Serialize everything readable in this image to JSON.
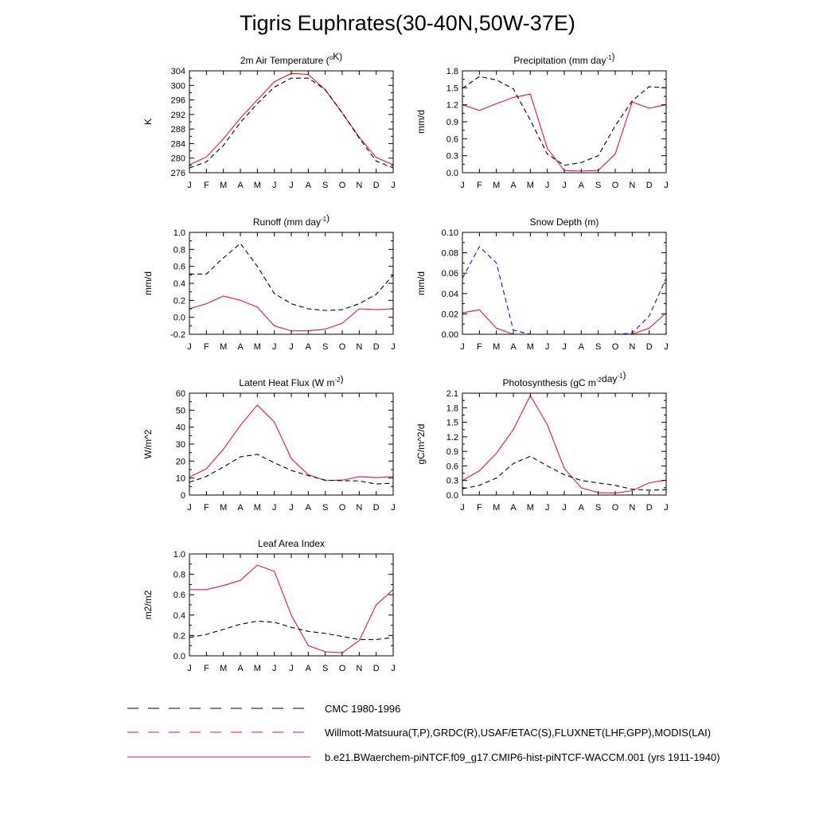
{
  "page": {
    "title": "Tigris Euphrates(30-40N,50W-37E)"
  },
  "months": [
    "J",
    "F",
    "M",
    "A",
    "M",
    "J",
    "J",
    "A",
    "S",
    "O",
    "N",
    "D",
    "J"
  ],
  "colors": {
    "model": "#e8191f",
    "cmc": "#000000",
    "obs": "#0a16d8",
    "axis": "#000000"
  },
  "legend": [
    {
      "label": "CMC 1980-1996",
      "style": "dashed",
      "colors": [
        "#000000"
      ]
    },
    {
      "label": "Willmott-Matsuura(T,P),GRDC(R),USAF/ETAC(S),FLUXNET(LHF,GPP),MODIS(LAI)",
      "style": "dashed",
      "colors": [
        "#e8191f",
        "#0a16d8"
      ]
    },
    {
      "label": "b.e21.BWaerchem-piNTCF.f09_g17.CMIP6-hist-piNTCF-WACCM.001 (yrs 1911-1940)",
      "style": "solid",
      "colors": [
        "#e8191f"
      ]
    }
  ],
  "chart_data": [
    {
      "type": "line",
      "title_parts": [
        {
          "t": "2m Air Temperature ("
        },
        {
          "t": "o",
          "sup": true
        },
        {
          "t": "K)"
        }
      ],
      "ylabel": "K",
      "ylim": [
        276,
        304
      ],
      "yticks": [
        276,
        280,
        284,
        288,
        292,
        296,
        300,
        304
      ],
      "ytick_labels": [
        "276",
        "280",
        "284",
        "288",
        "292",
        "296",
        "300",
        "304"
      ],
      "series": [
        {
          "role": "model",
          "style": "solid",
          "color": "#e8191f",
          "values": [
            278.2,
            280.3,
            285.3,
            291.0,
            296.0,
            301.0,
            303.3,
            303.0,
            298.8,
            292.4,
            285.8,
            280.2,
            278.2
          ]
        },
        {
          "role": "cmc",
          "style": "dashed",
          "color": "#000000",
          "values": [
            277.3,
            279.0,
            283.5,
            289.8,
            295.0,
            299.5,
            302.0,
            302.0,
            298.8,
            292.5,
            285.5,
            279.2,
            277.3
          ]
        }
      ]
    },
    {
      "type": "line",
      "title_parts": [
        {
          "t": "Precipitation (mm day"
        },
        {
          "t": "-1",
          "sup": true
        },
        {
          "t": ")"
        }
      ],
      "ylabel": "mm/d",
      "ylim": [
        0,
        1.8
      ],
      "yticks": [
        0,
        0.3,
        0.6,
        0.9,
        1.2,
        1.5,
        1.8
      ],
      "ytick_labels": [
        "0.0",
        "0.3",
        "0.6",
        "0.9",
        "1.2",
        "1.5",
        "1.8"
      ],
      "series": [
        {
          "role": "model",
          "style": "solid",
          "color": "#e8191f",
          "values": [
            1.2,
            1.1,
            1.22,
            1.33,
            1.39,
            0.43,
            0.04,
            0.03,
            0.04,
            0.33,
            1.25,
            1.14,
            1.2
          ]
        },
        {
          "role": "cmc",
          "style": "dashed",
          "color": "#000000",
          "values": [
            1.49,
            1.7,
            1.64,
            1.48,
            0.93,
            0.33,
            0.13,
            0.18,
            0.3,
            0.83,
            1.27,
            1.52,
            1.5
          ]
        }
      ]
    },
    {
      "type": "line",
      "title_parts": [
        {
          "t": "Runoff (mm day"
        },
        {
          "t": "-1",
          "sup": true
        },
        {
          "t": ")"
        }
      ],
      "ylabel": "mm/d",
      "ylim": [
        -0.2,
        1.0
      ],
      "yticks": [
        -0.2,
        0,
        0.2,
        0.4,
        0.6,
        0.8,
        1.0
      ],
      "ytick_labels": [
        "-0.2",
        "0.0",
        "0.2",
        "0.4",
        "0.6",
        "0.8",
        "1.0"
      ],
      "series": [
        {
          "role": "model",
          "style": "solid",
          "color": "#e8191f",
          "values": [
            0.1,
            0.16,
            0.25,
            0.2,
            0.12,
            -0.1,
            -0.16,
            -0.16,
            -0.14,
            -0.07,
            0.1,
            0.09,
            0.1
          ]
        },
        {
          "role": "cmc",
          "style": "dashed",
          "color": "#000000",
          "values": [
            0.51,
            0.51,
            0.7,
            0.87,
            0.6,
            0.28,
            0.16,
            0.1,
            0.08,
            0.09,
            0.16,
            0.27,
            0.5
          ]
        }
      ]
    },
    {
      "type": "line",
      "title_parts": [
        {
          "t": "Snow Depth (m)"
        }
      ],
      "ylabel": "mm/d",
      "ylim": [
        0,
        0.1
      ],
      "yticks": [
        0,
        0.02,
        0.04,
        0.06,
        0.08,
        0.1
      ],
      "ytick_labels": [
        "0.00",
        "0.02",
        "0.04",
        "0.06",
        "0.08",
        "0.10"
      ],
      "series": [
        {
          "role": "model",
          "style": "solid",
          "color": "#e8191f",
          "values": [
            0.021,
            0.024,
            0.006,
            0.0,
            0.0,
            0.0,
            0.0,
            0.0,
            0.0,
            0.0,
            0.0,
            0.006,
            0.021
          ]
        },
        {
          "role": "cmc",
          "style": "dashed",
          "color": "#000000",
          "values": [
            0.0,
            0.0,
            0.0,
            0.0,
            0.0,
            0.0,
            0.0,
            0.0,
            0.0,
            0.0,
            0.0,
            0.0,
            0.0
          ]
        },
        {
          "role": "obs",
          "style": "dashed",
          "color": "#0a16d8",
          "values": [
            0.055,
            0.086,
            0.07,
            0.004,
            0.0,
            0.0,
            0.0,
            0.0,
            0.0,
            0.0,
            0.001,
            0.018,
            0.055
          ]
        }
      ]
    },
    {
      "type": "line",
      "title_parts": [
        {
          "t": "Latent Heat Flux (W m"
        },
        {
          "t": "-2",
          "sup": true
        },
        {
          "t": ")"
        }
      ],
      "ylabel": "W/m^2",
      "ylim": [
        0,
        60
      ],
      "yticks": [
        0,
        10,
        20,
        30,
        40,
        50,
        60
      ],
      "ytick_labels": [
        "0",
        "10",
        "20",
        "30",
        "40",
        "50",
        "60"
      ],
      "series": [
        {
          "role": "model",
          "style": "solid",
          "color": "#e8191f",
          "values": [
            10.5,
            15.5,
            27.0,
            41.0,
            53.0,
            43.0,
            21.5,
            12.0,
            8.5,
            8.8,
            10.8,
            10.3,
            10.8
          ]
        },
        {
          "role": "cmc",
          "style": "dashed",
          "color": "#000000",
          "values": [
            7.5,
            11.0,
            16.5,
            22.5,
            24.0,
            19.0,
            14.5,
            11.5,
            8.8,
            8.5,
            8.3,
            6.5,
            7.0
          ]
        }
      ]
    },
    {
      "type": "line",
      "title_parts": [
        {
          "t": "Photosynthesis (gC m"
        },
        {
          "t": "-2",
          "sup": true
        },
        {
          "t": "day"
        },
        {
          "t": "-1",
          "sup": true
        },
        {
          "t": ")"
        }
      ],
      "ylabel": "gC/m^2/d",
      "ylim": [
        0,
        2.1
      ],
      "yticks": [
        0,
        0.3,
        0.6,
        0.9,
        1.2,
        1.5,
        1.8,
        2.1
      ],
      "ytick_labels": [
        "0.0",
        "0.3",
        "0.6",
        "0.9",
        "1.2",
        "1.5",
        "1.8",
        "2.1"
      ],
      "series": [
        {
          "role": "model",
          "style": "solid",
          "color": "#e8191f",
          "values": [
            0.3,
            0.5,
            0.86,
            1.35,
            2.05,
            1.45,
            0.55,
            0.15,
            0.05,
            0.04,
            0.09,
            0.25,
            0.31
          ]
        },
        {
          "role": "cmc",
          "style": "dashed",
          "color": "#000000",
          "values": [
            0.13,
            0.2,
            0.35,
            0.65,
            0.8,
            0.6,
            0.42,
            0.3,
            0.25,
            0.2,
            0.12,
            0.1,
            0.11
          ]
        }
      ]
    },
    {
      "type": "line",
      "title_parts": [
        {
          "t": "Leaf Area Index"
        }
      ],
      "ylabel": "m2/m2",
      "ylim": [
        0,
        1.0
      ],
      "yticks": [
        0,
        0.2,
        0.4,
        0.6,
        0.8,
        1.0
      ],
      "ytick_labels": [
        "0.0",
        "0.2",
        "0.4",
        "0.6",
        "0.8",
        "1.0"
      ],
      "series": [
        {
          "role": "model",
          "style": "solid",
          "color": "#e8191f",
          "values": [
            0.65,
            0.65,
            0.69,
            0.74,
            0.89,
            0.83,
            0.4,
            0.1,
            0.04,
            0.03,
            0.15,
            0.5,
            0.65
          ]
        },
        {
          "role": "cmc",
          "style": "dashed",
          "color": "#000000",
          "values": [
            0.18,
            0.21,
            0.26,
            0.31,
            0.34,
            0.33,
            0.28,
            0.24,
            0.22,
            0.19,
            0.16,
            0.16,
            0.18
          ]
        }
      ]
    }
  ]
}
